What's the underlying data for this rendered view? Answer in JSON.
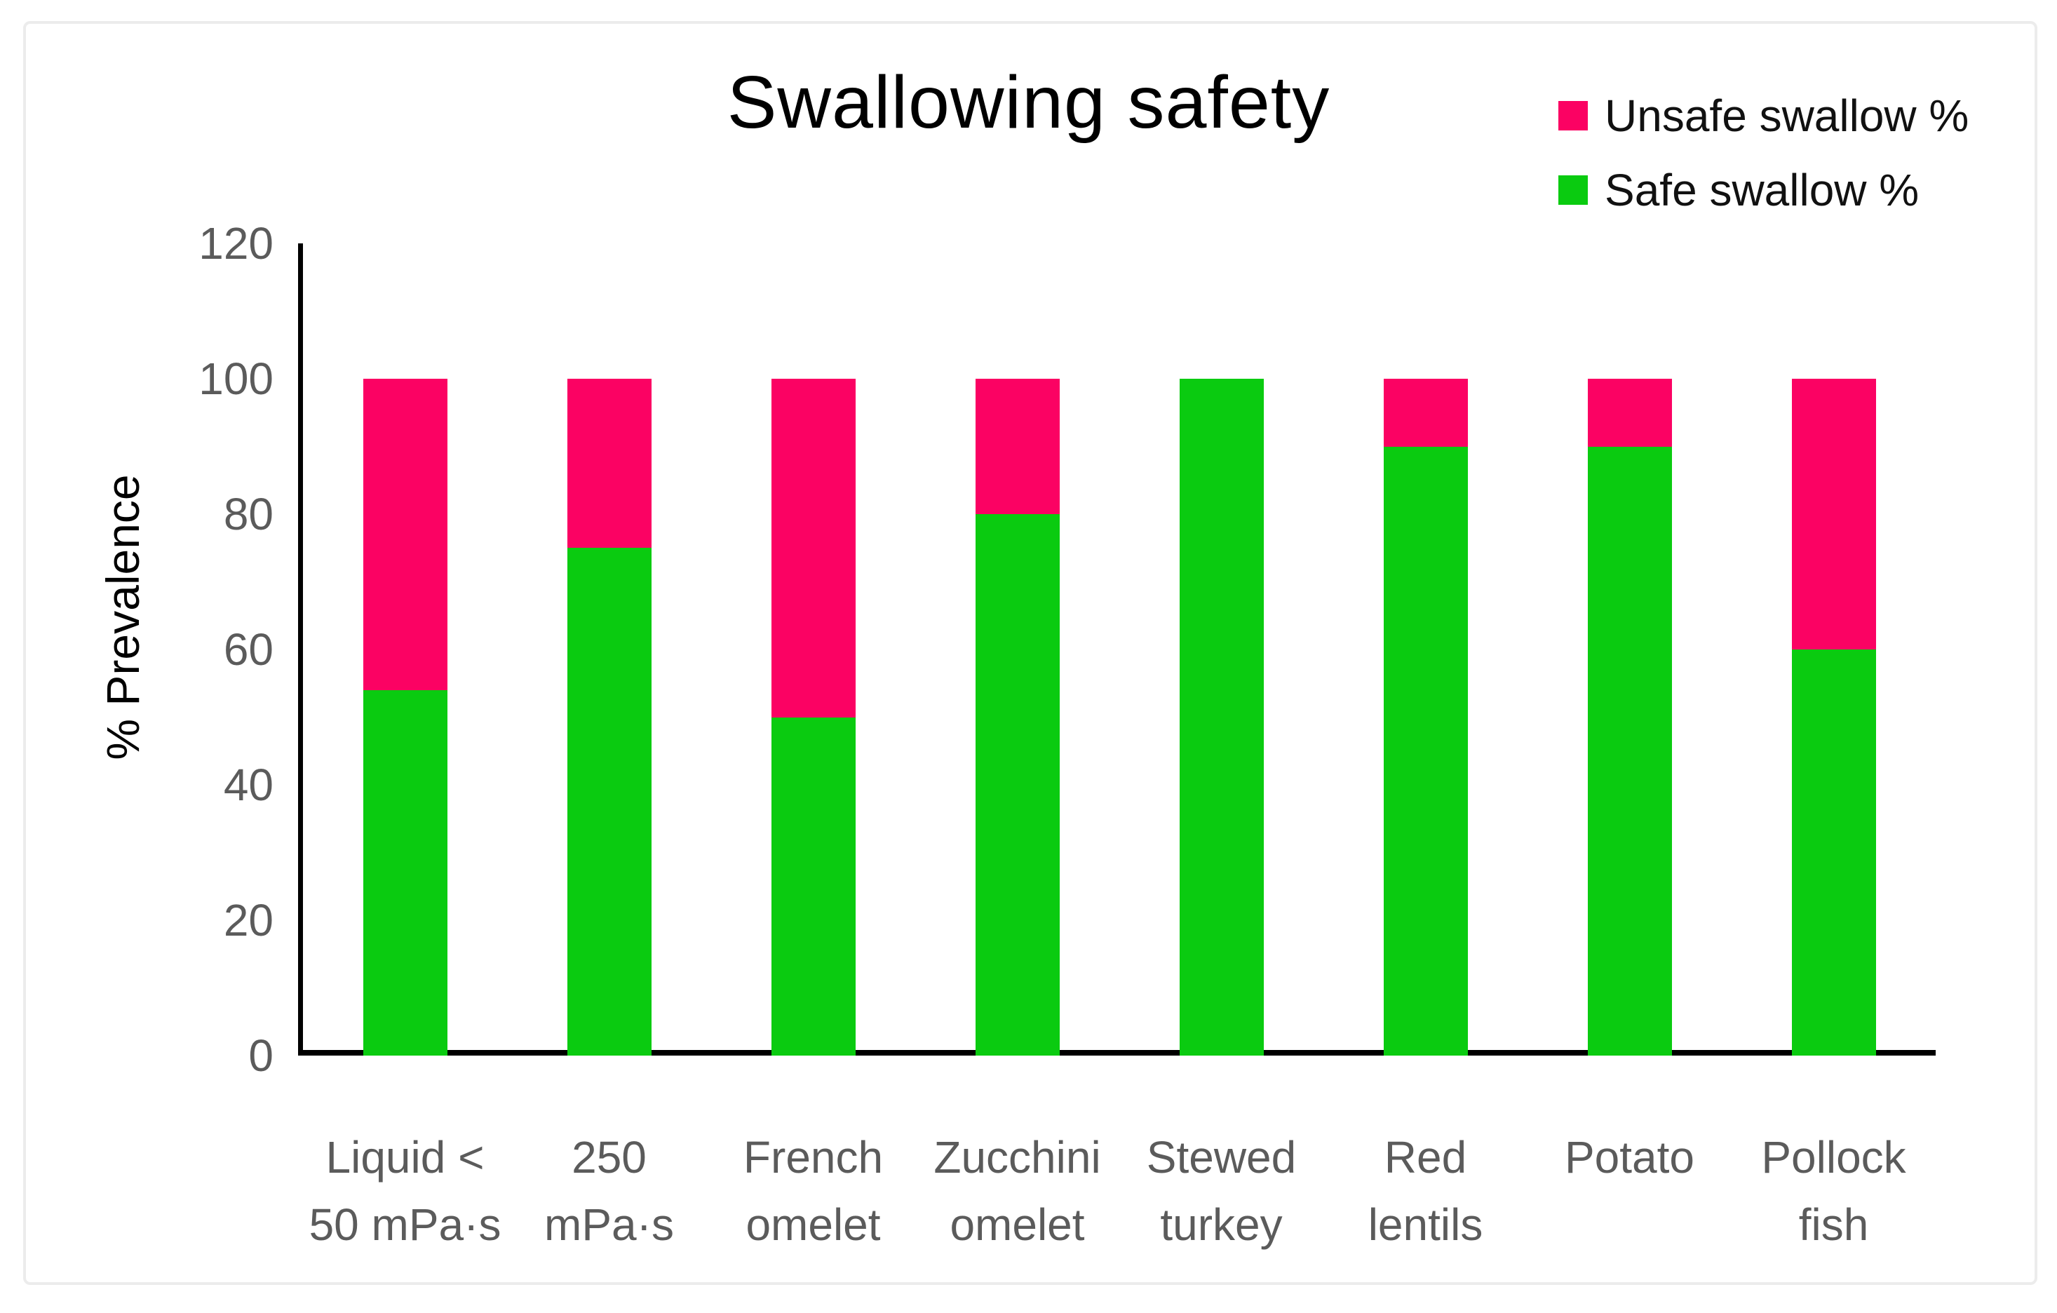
{
  "figure": {
    "title": "Swallowing safety",
    "y_axis_title": "% Prevalence"
  },
  "legend": {
    "position": "top-right",
    "items": [
      {
        "label": "Unsafe swallow %",
        "color": "#fb0263"
      },
      {
        "label": "Safe swallow %",
        "color": "#0acb10"
      }
    ]
  },
  "chart_data": {
    "type": "bar",
    "stacked": true,
    "title": "Swallowing safety",
    "xlabel": "",
    "ylabel": "% Prevalence",
    "categories": [
      "Liquid < 50 mPa·s",
      "250 mPa·s",
      "French omelet",
      "Zucchini omelet",
      "Stewed turkey",
      "Red lentils",
      "Potato",
      "Pollock fish"
    ],
    "categories_display_lines": [
      [
        "Liquid <",
        "50 mPa·s"
      ],
      [
        "250",
        "mPa·s"
      ],
      [
        "French",
        "omelet"
      ],
      [
        "Zucchini",
        "omelet"
      ],
      [
        "Stewed",
        "turkey"
      ],
      [
        "Red",
        "lentils"
      ],
      [
        "Potato"
      ],
      [
        "Pollock",
        "fish"
      ]
    ],
    "series": [
      {
        "name": "Safe swallow %",
        "color": "#0acb10",
        "values": [
          54,
          75,
          50,
          80,
          100,
          90,
          90,
          60
        ]
      },
      {
        "name": "Unsafe swallow %",
        "color": "#fb0263",
        "values": [
          46,
          25,
          50,
          20,
          0,
          10,
          10,
          40
        ]
      }
    ],
    "yticks": [
      0,
      20,
      40,
      60,
      80,
      100,
      120
    ],
    "ylim": [
      0,
      120
    ],
    "grid": false,
    "legend_position": "top-right",
    "axis_color": "#000000",
    "tick_label_color": "#5b5b5b"
  }
}
